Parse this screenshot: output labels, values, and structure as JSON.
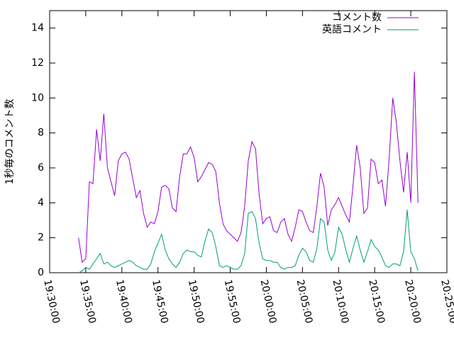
{
  "chart_data": {
    "type": "line",
    "ylabel": "1秒毎のコメント数",
    "x": [
      70440,
      70470,
      70500,
      70530,
      70560,
      70590,
      70620,
      70650,
      70680,
      70710,
      70740,
      70770,
      70800,
      70830,
      70860,
      70890,
      70920,
      70950,
      70980,
      71010,
      71040,
      71070,
      71100,
      71130,
      71160,
      71190,
      71220,
      71250,
      71280,
      71310,
      71340,
      71370,
      71400,
      71430,
      71460,
      71490,
      71520,
      71550,
      71580,
      71610,
      71640,
      71670,
      71700,
      71730,
      71760,
      71790,
      71820,
      71850,
      71880,
      71910,
      71940,
      71970,
      72000,
      72030,
      72060,
      72090,
      72120,
      72150,
      72180,
      72210,
      72240,
      72270,
      72300,
      72330,
      72360,
      72390,
      72420,
      72450,
      72480,
      72510,
      72540,
      72570,
      72600,
      72630,
      72660,
      72690,
      72720,
      72750,
      72780,
      72810,
      72840,
      72870,
      72900,
      72930,
      72960,
      72990,
      73020,
      73050,
      73080,
      73110,
      73140,
      73170,
      73200,
      73230,
      73260
    ],
    "series": [
      {
        "name": "コメント数",
        "color": "#9400d3",
        "values": [
          2.0,
          0.6,
          0.8,
          5.2,
          5.1,
          8.2,
          6.4,
          9.1,
          6.0,
          5.2,
          4.4,
          6.4,
          6.8,
          6.9,
          6.5,
          5.4,
          4.3,
          4.7,
          3.4,
          2.6,
          2.9,
          2.8,
          3.5,
          4.9,
          5.0,
          4.8,
          3.7,
          3.5,
          5.5,
          6.8,
          6.8,
          7.2,
          6.6,
          5.2,
          5.5,
          5.9,
          6.3,
          6.2,
          5.8,
          4.0,
          2.8,
          2.4,
          2.2,
          2.0,
          1.8,
          2.3,
          3.8,
          6.4,
          7.5,
          7.1,
          4.5,
          2.8,
          3.1,
          3.2,
          2.4,
          2.3,
          2.9,
          3.1,
          2.2,
          1.8,
          2.6,
          3.6,
          3.5,
          2.9,
          2.4,
          2.3,
          3.8,
          5.7,
          4.9,
          2.7,
          3.6,
          3.9,
          4.3,
          3.8,
          3.3,
          2.9,
          5.0,
          7.3,
          6.0,
          3.4,
          3.7,
          6.5,
          6.3,
          5.1,
          5.3,
          3.8,
          6.5,
          10.0,
          8.6,
          6.4,
          4.6,
          6.9,
          4.0,
          11.5,
          4.0
        ]
      },
      {
        "name": "英語コメント",
        "color": "#009e73",
        "values": [
          0,
          0.1,
          0.3,
          0.2,
          0.5,
          0.8,
          1.1,
          0.5,
          0.6,
          0.4,
          0.3,
          0.4,
          0.5,
          0.6,
          0.7,
          0.6,
          0.4,
          0.3,
          0.2,
          0.2,
          0.5,
          1.2,
          1.7,
          2.2,
          1.3,
          0.8,
          0.5,
          0.3,
          0.6,
          1.1,
          1.3,
          1.2,
          1.2,
          1.0,
          0.9,
          1.8,
          2.5,
          2.3,
          1.5,
          0.4,
          0.3,
          0.4,
          0.3,
          0.2,
          0.2,
          0.4,
          1.1,
          3.4,
          3.5,
          3.1,
          1.7,
          0.8,
          0.7,
          0.7,
          0.6,
          0.6,
          0.3,
          0.2,
          0.3,
          0.3,
          0.4,
          1.0,
          1.4,
          1.2,
          0.7,
          0.6,
          1.4,
          3.1,
          2.9,
          1.3,
          0.7,
          1.2,
          2.6,
          2.2,
          1.3,
          0.6,
          1.4,
          2.1,
          1.3,
          0.6,
          1.2,
          1.9,
          1.5,
          1.3,
          0.9,
          0.4,
          0.3,
          0.5,
          0.5,
          0.4,
          1.2,
          3.6,
          1.2,
          0.8,
          0.1
        ]
      }
    ],
    "xlim": [
      70200,
      73500
    ],
    "xticks": [
      {
        "value": 70200,
        "label": "19:30:00"
      },
      {
        "value": 70500,
        "label": "19:35:00"
      },
      {
        "value": 70800,
        "label": "19:40:00"
      },
      {
        "value": 71100,
        "label": "19:45:00"
      },
      {
        "value": 71400,
        "label": "19:50:00"
      },
      {
        "value": 71700,
        "label": "19:55:00"
      },
      {
        "value": 72000,
        "label": "20:00:00"
      },
      {
        "value": 72300,
        "label": "20:05:00"
      },
      {
        "value": 72600,
        "label": "20:10:00"
      },
      {
        "value": 72900,
        "label": "20:15:00"
      },
      {
        "value": 73200,
        "label": "20:20:00"
      },
      {
        "value": 73500,
        "label": "20:25:00"
      }
    ],
    "ylim": [
      0,
      15
    ],
    "yticks": [
      0,
      2,
      4,
      6,
      8,
      10,
      12,
      14
    ],
    "legend": "top-right"
  }
}
